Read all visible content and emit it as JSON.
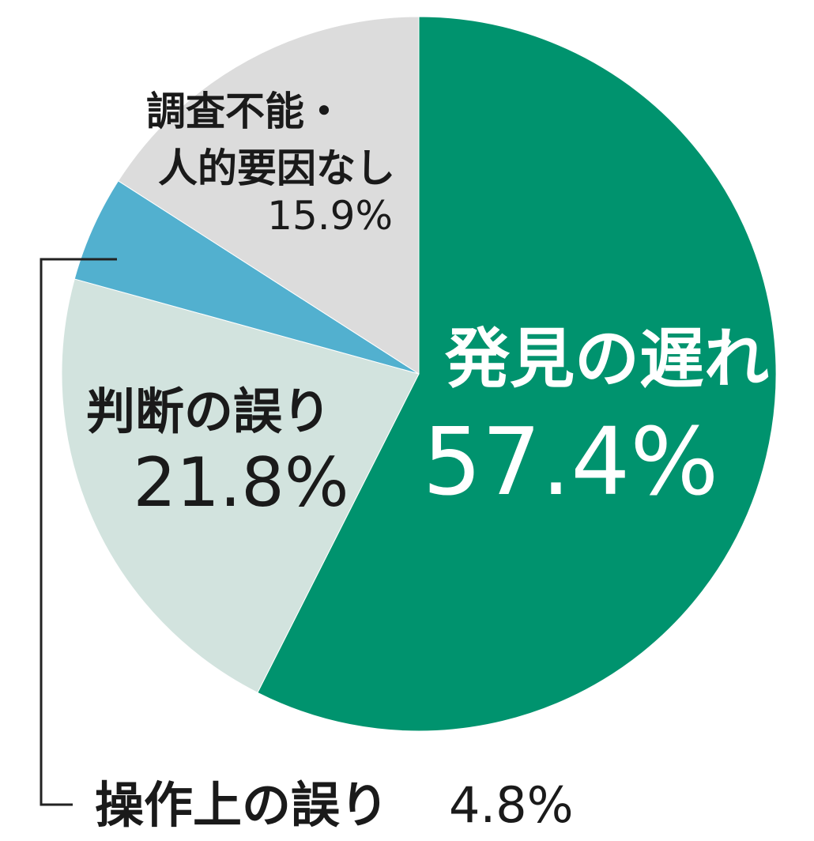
{
  "colors": {
    "background": "#ffffff",
    "leader_line": "#222222"
  },
  "chart_data": {
    "type": "pie",
    "title": "",
    "start_angle_deg": 0,
    "direction": "clockwise",
    "slices": [
      {
        "label": "発見の遅れ",
        "value": 57.4,
        "display": "57.4%",
        "color": "#00936e",
        "text_color": "#ffffff"
      },
      {
        "label": "判断の誤り",
        "value": 21.8,
        "display": "21.8%",
        "color": "#d2e3de",
        "text_color": "#1a1a1a"
      },
      {
        "label": "操作上の誤り",
        "value": 4.8,
        "display": "4.8%",
        "color": "#52b0cf",
        "text_color": "#1a1a1a"
      },
      {
        "label_lines": [
          "調査不能・",
          "人的要因なし"
        ],
        "value": 15.9,
        "display": "15.9%",
        "color": "#dcdcdc",
        "text_color": "#1a1a1a"
      }
    ]
  }
}
